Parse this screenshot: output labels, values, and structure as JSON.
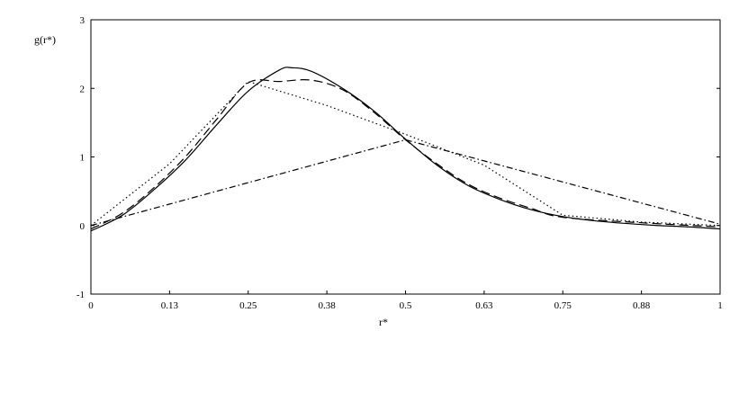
{
  "chart_data": {
    "type": "line",
    "xlabel": "r*",
    "ylabel": "g(r*)",
    "xlim": [
      0,
      1
    ],
    "ylim": [
      -1,
      3
    ],
    "grid": false,
    "x_ticks": [
      {
        "value": 0,
        "label": "0"
      },
      {
        "value": 0.125,
        "label": "0.13"
      },
      {
        "value": 0.25,
        "label": "0.25"
      },
      {
        "value": 0.375,
        "label": "0.38"
      },
      {
        "value": 0.5,
        "label": "0.5"
      },
      {
        "value": 0.625,
        "label": "0.63"
      },
      {
        "value": 0.75,
        "label": "0.75"
      },
      {
        "value": 0.875,
        "label": "0.88"
      },
      {
        "value": 1,
        "label": "1"
      }
    ],
    "y_ticks": [
      {
        "value": -1,
        "label": "-1"
      },
      {
        "value": 0,
        "label": "0"
      },
      {
        "value": 1,
        "label": "1"
      },
      {
        "value": 2,
        "label": "2"
      },
      {
        "value": 3,
        "label": "3"
      }
    ],
    "series": [
      {
        "style": "solid",
        "color": "#000000",
        "x": [
          0,
          0.05,
          0.1,
          0.15,
          0.2,
          0.25,
          0.3,
          0.32,
          0.35,
          0.4,
          0.45,
          0.5,
          0.55,
          0.6,
          0.65,
          0.7,
          0.75,
          0.8,
          0.85,
          0.9,
          0.95,
          1
        ],
        "y": [
          -0.08,
          0.15,
          0.52,
          0.95,
          1.47,
          1.96,
          2.27,
          2.3,
          2.25,
          2.0,
          1.67,
          1.26,
          0.88,
          0.58,
          0.38,
          0.23,
          0.13,
          0.07,
          0.03,
          0.0,
          -0.02,
          -0.05
        ]
      },
      {
        "style": "dashed",
        "color": "#000000",
        "x": [
          0,
          0.05,
          0.1,
          0.15,
          0.2,
          0.25,
          0.3,
          0.35,
          0.4,
          0.45,
          0.5,
          0.55,
          0.6,
          0.65,
          0.7,
          0.75,
          0.875,
          1
        ],
        "y": [
          -0.05,
          0.18,
          0.55,
          1.0,
          1.55,
          2.08,
          2.1,
          2.12,
          1.98,
          1.65,
          1.25,
          0.9,
          0.6,
          0.4,
          0.25,
          0.12,
          0.04,
          -0.02
        ]
      },
      {
        "style": "dotted",
        "color": "#000000",
        "x": [
          0,
          0.125,
          0.25,
          0.375,
          0.5,
          0.625,
          0.75,
          0.875,
          1
        ],
        "y": [
          0.0,
          0.9,
          2.1,
          1.75,
          1.33,
          0.88,
          0.15,
          0.05,
          0.0
        ]
      },
      {
        "style": "dashdot",
        "color": "#000000",
        "x": [
          0,
          0.5,
          1
        ],
        "y": [
          0.0,
          1.25,
          0.02
        ]
      }
    ]
  }
}
